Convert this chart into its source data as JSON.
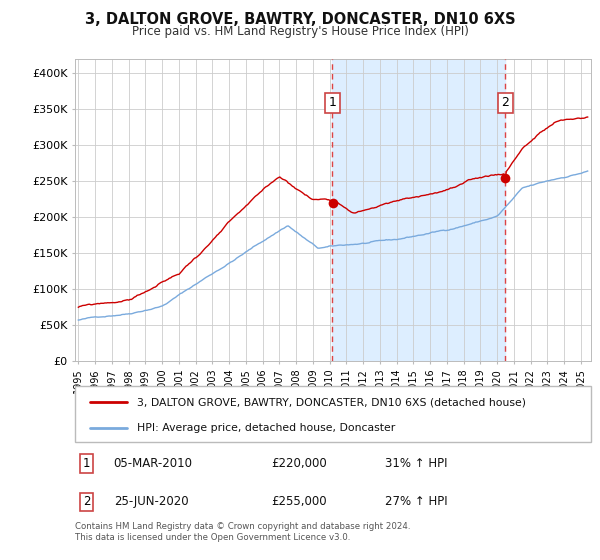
{
  "title": "3, DALTON GROVE, BAWTRY, DONCASTER, DN10 6XS",
  "subtitle": "Price paid vs. HM Land Registry's House Price Index (HPI)",
  "legend_property": "3, DALTON GROVE, BAWTRY, DONCASTER, DN10 6XS (detached house)",
  "legend_hpi": "HPI: Average price, detached house, Doncaster",
  "annotation1_label": "1",
  "annotation1_date": "05-MAR-2010",
  "annotation1_price": "£220,000",
  "annotation1_hpi": "31% ↑ HPI",
  "annotation2_label": "2",
  "annotation2_date": "25-JUN-2020",
  "annotation2_price": "£255,000",
  "annotation2_hpi": "27% ↑ HPI",
  "footnote1": "Contains HM Land Registry data © Crown copyright and database right 2024.",
  "footnote2": "This data is licensed under the Open Government Licence v3.0.",
  "sale1_year": 2010.17,
  "sale1_value": 220000,
  "sale2_year": 2020.48,
  "sale2_value": 255000,
  "ylim": [
    0,
    420000
  ],
  "xlim_start": 1994.8,
  "xlim_end": 2025.6,
  "property_color": "#cc0000",
  "hpi_color": "#7aaadd",
  "shaded_region_color": "#ddeeff",
  "vline_color": "#dd4444",
  "grid_color": "#cccccc",
  "plot_bg_color": "#ffffff",
  "yticks": [
    0,
    50000,
    100000,
    150000,
    200000,
    250000,
    300000,
    350000,
    400000
  ],
  "ytick_labels": [
    "£0",
    "£50K",
    "£100K",
    "£150K",
    "£200K",
    "£250K",
    "£300K",
    "£350K",
    "£400K"
  ]
}
